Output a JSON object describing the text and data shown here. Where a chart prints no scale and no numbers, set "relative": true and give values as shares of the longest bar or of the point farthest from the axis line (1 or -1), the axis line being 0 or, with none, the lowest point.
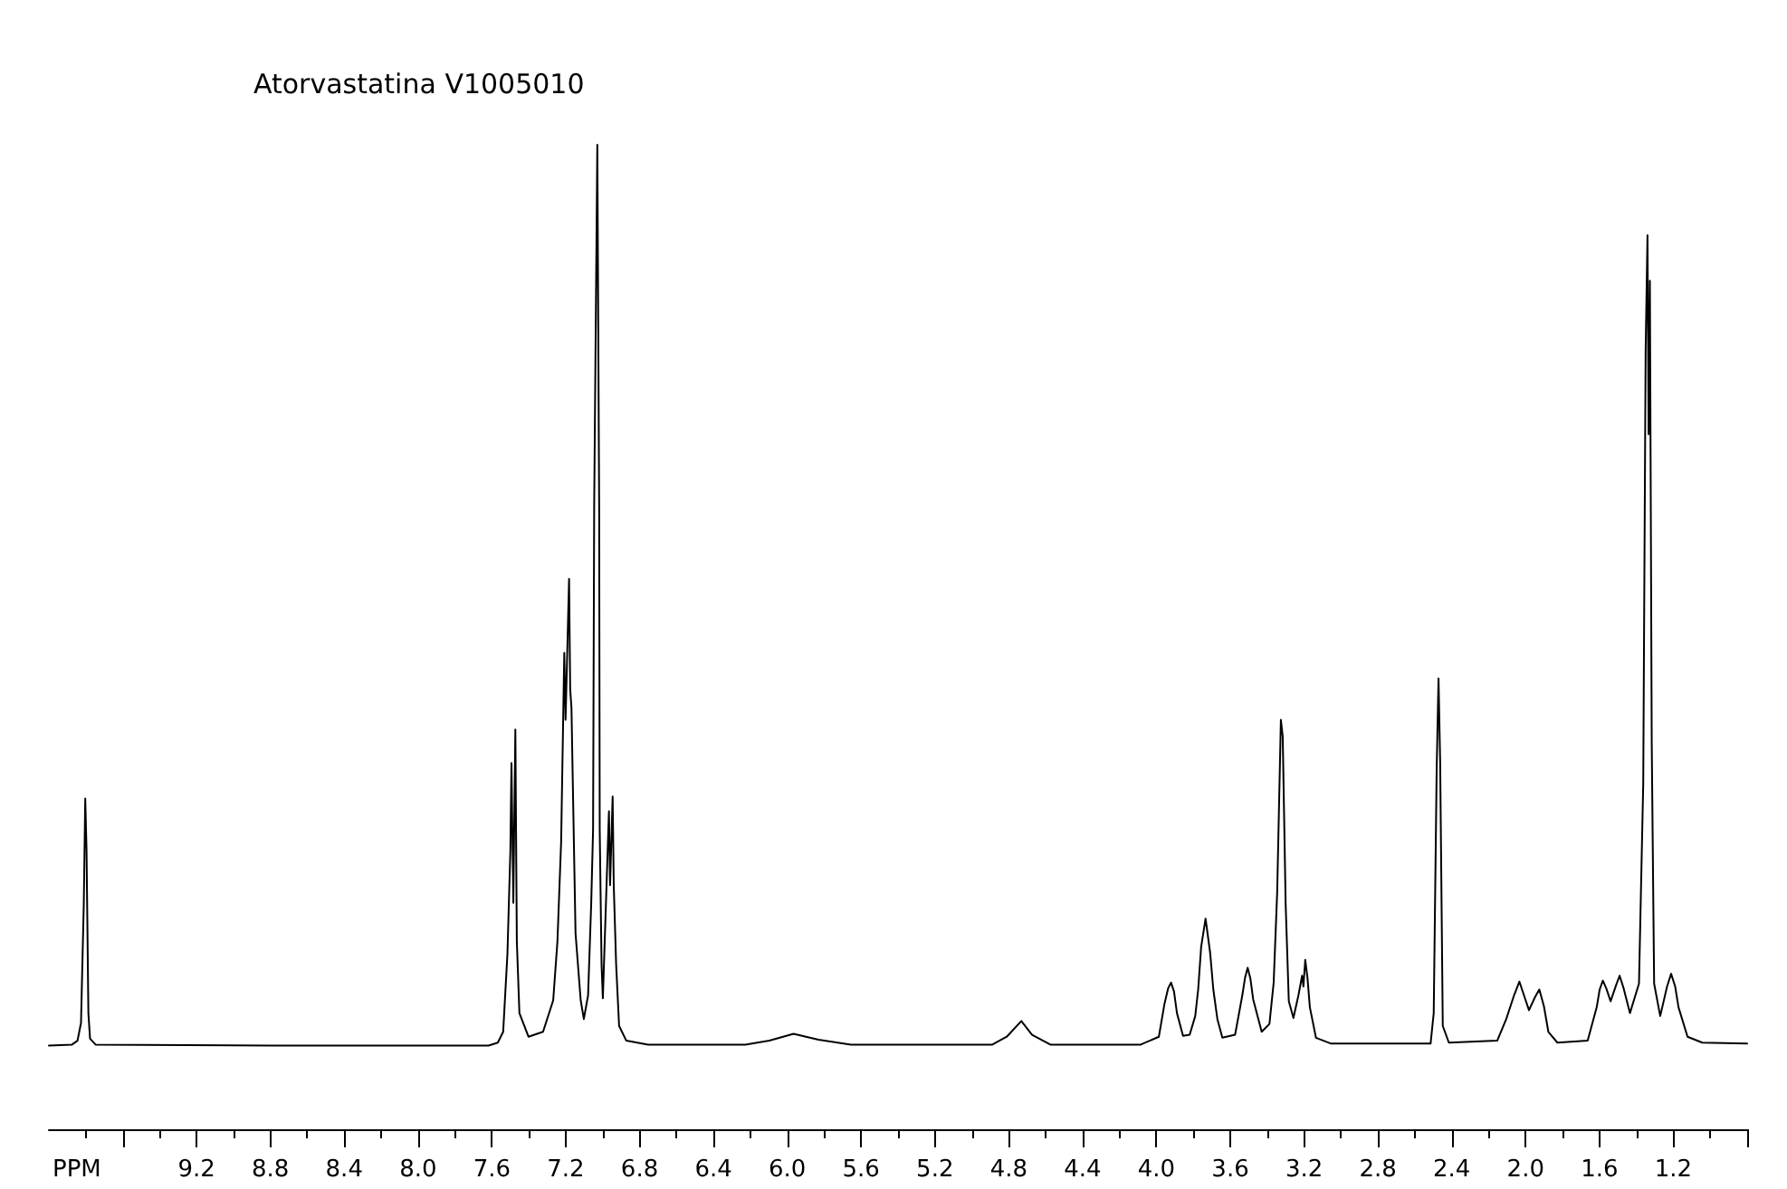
{
  "chart_data": {
    "type": "line",
    "title": "Atorvastatina V1005010",
    "xlabel": "PPM",
    "relative": true,
    "color": "#000000",
    "marker": "none",
    "x": [
      10.0,
      9.875,
      9.845,
      9.826,
      9.811,
      9.803,
      9.796,
      9.786,
      9.777,
      9.747,
      8.795,
      7.618,
      7.568,
      7.539,
      7.516,
      7.5,
      7.494,
      7.484,
      7.473,
      7.465,
      7.451,
      7.402,
      7.323,
      7.268,
      7.245,
      7.225,
      7.208,
      7.201,
      7.182,
      7.176,
      7.169,
      7.162,
      7.147,
      7.119,
      7.102,
      7.079,
      7.062,
      7.052,
      7.046,
      7.029,
      7.019,
      7.016,
      7.006,
      6.999,
      6.966,
      6.96,
      6.946,
      6.94,
      6.927,
      6.911,
      6.872,
      6.754,
      6.227,
      6.097,
      5.966,
      5.831,
      5.655,
      4.889,
      4.811,
      4.732,
      4.674,
      4.575,
      4.085,
      3.987,
      3.957,
      3.937,
      3.921,
      3.905,
      3.889,
      3.856,
      3.82,
      3.79,
      3.774,
      3.758,
      3.734,
      3.709,
      3.692,
      3.67,
      3.643,
      3.574,
      3.535,
      3.52,
      3.506,
      3.491,
      3.476,
      3.43,
      3.388,
      3.365,
      3.346,
      3.326,
      3.316,
      3.3,
      3.283,
      3.258,
      3.231,
      3.211,
      3.204,
      3.194,
      3.182,
      3.169,
      3.136,
      3.054,
      2.515,
      2.498,
      2.482,
      2.472,
      2.463,
      2.449,
      2.416,
      2.154,
      2.105,
      2.063,
      2.034,
      2.009,
      1.982,
      1.95,
      1.926,
      1.901,
      1.877,
      1.828,
      1.664,
      1.615,
      1.599,
      1.582,
      1.563,
      1.54,
      1.509,
      1.491,
      1.469,
      1.435,
      1.386,
      1.363,
      1.35,
      1.34,
      1.334,
      1.327,
      1.317,
      1.304,
      1.271,
      1.234,
      1.212,
      1.19,
      1.172,
      1.123,
      1.043,
      0.8
    ],
    "values": [
      0.085,
      0.086,
      0.09,
      0.108,
      0.228,
      0.336,
      0.283,
      0.118,
      0.092,
      0.086,
      0.085,
      0.085,
      0.088,
      0.099,
      0.178,
      0.283,
      0.372,
      0.23,
      0.406,
      0.191,
      0.118,
      0.094,
      0.099,
      0.131,
      0.191,
      0.292,
      0.484,
      0.416,
      0.559,
      0.447,
      0.428,
      0.354,
      0.199,
      0.131,
      0.112,
      0.136,
      0.23,
      0.304,
      0.633,
      1.0,
      0.633,
      0.304,
      0.167,
      0.133,
      0.323,
      0.248,
      0.338,
      0.248,
      0.167,
      0.105,
      0.09,
      0.086,
      0.086,
      0.09,
      0.097,
      0.091,
      0.086,
      0.086,
      0.094,
      0.11,
      0.096,
      0.086,
      0.086,
      0.094,
      0.127,
      0.143,
      0.149,
      0.14,
      0.118,
      0.095,
      0.096,
      0.115,
      0.142,
      0.185,
      0.214,
      0.179,
      0.142,
      0.112,
      0.093,
      0.096,
      0.136,
      0.154,
      0.164,
      0.153,
      0.132,
      0.099,
      0.107,
      0.149,
      0.241,
      0.416,
      0.399,
      0.228,
      0.13,
      0.113,
      0.136,
      0.156,
      0.145,
      0.172,
      0.154,
      0.124,
      0.093,
      0.087,
      0.087,
      0.118,
      0.366,
      0.458,
      0.372,
      0.105,
      0.088,
      0.09,
      0.112,
      0.136,
      0.15,
      0.136,
      0.121,
      0.134,
      0.142,
      0.125,
      0.099,
      0.088,
      0.09,
      0.124,
      0.142,
      0.151,
      0.143,
      0.13,
      0.147,
      0.156,
      0.143,
      0.118,
      0.148,
      0.351,
      0.792,
      0.908,
      0.706,
      0.862,
      0.393,
      0.148,
      0.115,
      0.145,
      0.158,
      0.145,
      0.124,
      0.094,
      0.088,
      0.087
    ],
    "xlim": [
      10.0,
      0.8
    ],
    "xticks": [
      {
        "value": 9.8,
        "label": null
      },
      {
        "value": 9.6,
        "label": null
      },
      {
        "value": 9.4,
        "label": null
      },
      9.2,
      {
        "value": 9.0,
        "label": null
      },
      8.8,
      {
        "value": 8.6,
        "label": null
      },
      8.4,
      {
        "value": 8.2,
        "label": null
      },
      {
        "value": 8.0,
        "label": "8.0"
      },
      {
        "value": 7.8,
        "label": null
      },
      7.6,
      {
        "value": 7.4,
        "label": null
      },
      7.2,
      {
        "value": 7.0,
        "label": null
      },
      6.8,
      {
        "value": 6.6,
        "label": null
      },
      6.4,
      {
        "value": 6.2,
        "label": null
      },
      {
        "value": 6.0,
        "label": "6.0"
      },
      {
        "value": 5.8,
        "label": null
      },
      5.6,
      {
        "value": 5.4,
        "label": null
      },
      5.2,
      {
        "value": 5.0,
        "label": null
      },
      4.8,
      {
        "value": 4.6,
        "label": null
      },
      4.4,
      {
        "value": 4.2,
        "label": null
      },
      {
        "value": 4.0,
        "label": "4.0"
      },
      {
        "value": 3.8,
        "label": null
      },
      3.6,
      {
        "value": 3.4,
        "label": null
      },
      3.2,
      {
        "value": 3.0,
        "label": null
      },
      2.8,
      {
        "value": 2.6,
        "label": null
      },
      2.4,
      {
        "value": 2.2,
        "label": null
      },
      {
        "value": 2.0,
        "label": "2.0"
      },
      {
        "value": 1.8,
        "label": null
      },
      1.6,
      {
        "value": 1.4,
        "label": null
      },
      1.2,
      {
        "value": 1.0,
        "label": null
      },
      {
        "value": 0.8,
        "label": null
      }
    ]
  }
}
